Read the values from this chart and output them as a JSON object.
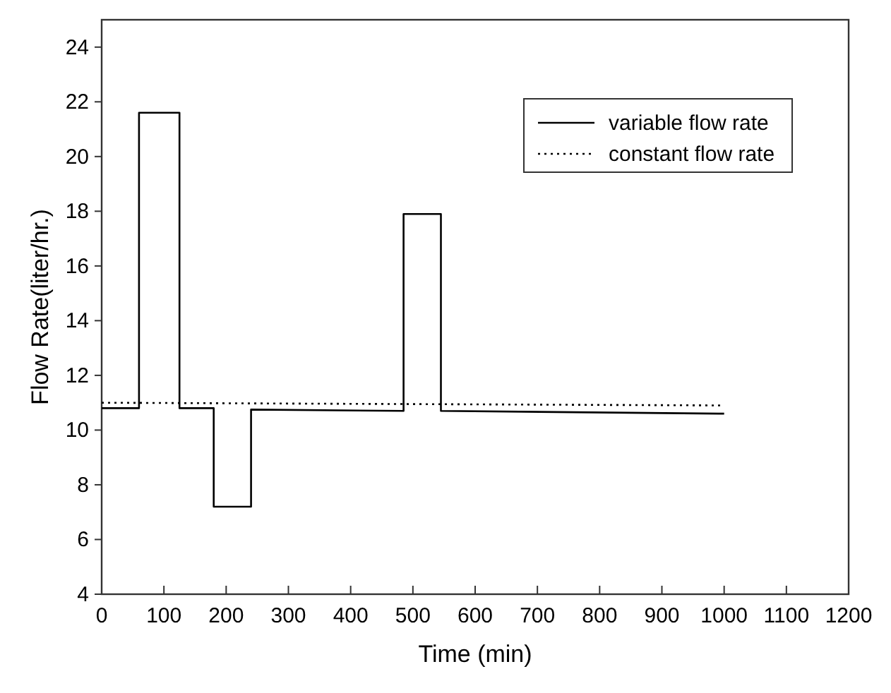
{
  "chart_data": {
    "type": "line",
    "xlabel": "Time (min)",
    "ylabel": "Flow Rate(liter/hr.)",
    "xlim": [
      0,
      1200
    ],
    "xticks": [
      0,
      100,
      200,
      300,
      400,
      500,
      600,
      700,
      800,
      900,
      1000,
      1100,
      1200
    ],
    "ylim": [
      4,
      25
    ],
    "yticks": [
      4,
      6,
      8,
      10,
      12,
      14,
      16,
      18,
      20,
      22,
      24
    ],
    "grid": false,
    "legend": "top right",
    "marker": "none",
    "series": [
      {
        "name": "variable flow rate",
        "color": "#000000",
        "line_style": "solid",
        "x": [
          0,
          60,
          60,
          125,
          125,
          180,
          180,
          240,
          240,
          485,
          485,
          545,
          545,
          1000
        ],
        "values": [
          10.8,
          10.8,
          21.6,
          21.6,
          10.8,
          10.8,
          7.2,
          7.2,
          10.75,
          10.7,
          17.9,
          17.9,
          10.7,
          10.6
        ]
      },
      {
        "name": "constant flow rate",
        "color": "#000000",
        "line_style": "dotted",
        "x": [
          0,
          1000
        ],
        "values": [
          11,
          10.9
        ]
      }
    ]
  }
}
